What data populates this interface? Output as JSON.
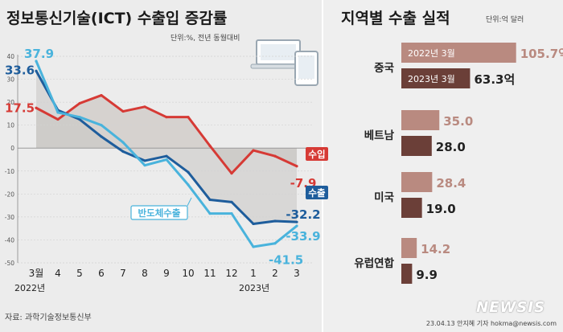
{
  "left": {
    "title": "정보통신기술(ICT) 수출입 증감률",
    "unit": "단위:%, 전년 동월대비"
  },
  "right": {
    "title": "지역별 수출 실적",
    "unit": "단위:억 달러"
  },
  "source": "자료: 과학기술정보통신부",
  "credit": "23.04.13 안지혜 기자 hokma@newsis.com",
  "logo": "NEWSIS",
  "colors": {
    "import": "#d63a35",
    "export": "#1e5d9c",
    "semi": "#49b3dc",
    "bar2022": "#b98a80",
    "bar2023": "#6b3f38"
  },
  "chart_data": [
    {
      "type": "line",
      "title": "정보통신기술(ICT) 수출입 증감률",
      "x_labels": [
        "3월",
        "4",
        "5",
        "6",
        "7",
        "8",
        "9",
        "10",
        "11",
        "12",
        "1",
        "2",
        "3"
      ],
      "year_labels": [
        "2022년",
        "2023년"
      ],
      "ylim": [
        -50,
        40
      ],
      "yticks": [
        40,
        30,
        20,
        10,
        0,
        -10,
        -20,
        -30,
        -40,
        -50
      ],
      "series": [
        {
          "name": "수입",
          "color": "#d63a35",
          "values": [
            17.5,
            12.5,
            19.5,
            23.0,
            16.0,
            18.0,
            13.5,
            13.5,
            1.0,
            -11.0,
            -1.0,
            -3.5,
            -7.9
          ],
          "labels": [
            "17.5",
            "-7.9"
          ]
        },
        {
          "name": "수출",
          "color": "#1e5d9c",
          "values": [
            33.6,
            16.5,
            12.5,
            5.0,
            -1.5,
            -5.5,
            -3.5,
            -10.5,
            -22.5,
            -23.5,
            -33.0,
            -31.8,
            -32.2
          ],
          "labels": [
            "33.6",
            "-32.2"
          ]
        },
        {
          "name": "반도체수출",
          "color": "#49b3dc",
          "values": [
            37.9,
            15.5,
            13.5,
            10.0,
            2.5,
            -7.5,
            -5.0,
            -16.0,
            -28.5,
            -28.5,
            -43.0,
            -41.5,
            -33.9
          ],
          "labels": [
            "37.9",
            "-41.5",
            "-33.9"
          ]
        }
      ]
    },
    {
      "type": "bar",
      "title": "지역별 수출 실적",
      "unit": "억",
      "categories": [
        "중국",
        "베트남",
        "미국",
        "유럽연합"
      ],
      "series": [
        {
          "name": "2022년 3월",
          "color": "#b98a80",
          "values": [
            105.7,
            35.0,
            28.4,
            14.2
          ]
        },
        {
          "name": "2023년 3월",
          "color": "#6b3f38",
          "values": [
            63.3,
            28.0,
            19.0,
            9.9
          ]
        }
      ]
    }
  ]
}
